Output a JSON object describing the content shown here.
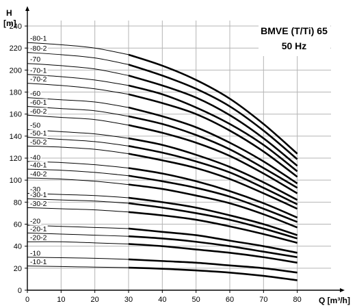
{
  "chart_data": {
    "type": "line",
    "title": "BMVE (T/Ti) 65",
    "subtitle": "50 Hz",
    "ylabel": "H",
    "yunit": "[m]",
    "xlabel": "Q [m³/h]",
    "xlim": [
      0,
      90
    ],
    "ylim": [
      0,
      245
    ],
    "xticks": [
      0,
      10,
      20,
      30,
      40,
      50,
      60,
      70,
      80
    ],
    "yticks": [
      0,
      20,
      40,
      60,
      80,
      100,
      120,
      140,
      160,
      180,
      200,
      220,
      240
    ],
    "grid": true,
    "bold_range": [
      30,
      80
    ],
    "x": [
      0,
      10,
      20,
      30,
      40,
      50,
      60,
      70,
      80
    ],
    "series": [
      {
        "name": "-80-1",
        "values": [
          225,
          223,
          220,
          214,
          204,
          191,
          174,
          151,
          124
        ]
      },
      {
        "name": "-80-2",
        "values": [
          216,
          214,
          211,
          205,
          195,
          183,
          167,
          145,
          119
        ]
      },
      {
        "name": "-70",
        "values": [
          206,
          204,
          201,
          195,
          186,
          175,
          159,
          138,
          113
        ]
      },
      {
        "name": "-70-1",
        "values": [
          196,
          194,
          191,
          186,
          178,
          166,
          151,
          132,
          108
        ]
      },
      {
        "name": "-70-2",
        "values": [
          188,
          186,
          183,
          178,
          170,
          160,
          145,
          126,
          103
        ]
      },
      {
        "name": "-60",
        "values": [
          175,
          173,
          171,
          166,
          158,
          148,
          134,
          117,
          97
        ]
      },
      {
        "name": "-60-1",
        "values": [
          167,
          165,
          163,
          158,
          151,
          141,
          128,
          111,
          93
        ]
      },
      {
        "name": "-60-2",
        "values": [
          159,
          157,
          155,
          150,
          143,
          134,
          122,
          106,
          88
        ]
      },
      {
        "name": "-50",
        "values": [
          146,
          144,
          142,
          138,
          132,
          123,
          112,
          98,
          82
        ]
      },
      {
        "name": "-50-1",
        "values": [
          139,
          137,
          135,
          131,
          125,
          117,
          107,
          93,
          78
        ]
      },
      {
        "name": "-50-2",
        "values": [
          131,
          130,
          128,
          124,
          118,
          111,
          101,
          88,
          74
        ]
      },
      {
        "name": "-40",
        "values": [
          117,
          116,
          114,
          111,
          106,
          99,
          90,
          79,
          66
        ]
      },
      {
        "name": "-40-1",
        "values": [
          110,
          109,
          107,
          104,
          99,
          93,
          85,
          74,
          62
        ]
      },
      {
        "name": "-40-2",
        "values": [
          102,
          101,
          99,
          96,
          92,
          86,
          79,
          69,
          57
        ]
      },
      {
        "name": "-30",
        "values": [
          88,
          87,
          86,
          84,
          80,
          75,
          68,
          60,
          50
        ]
      },
      {
        "name": "-30-1",
        "values": [
          83,
          82,
          81,
          79,
          75,
          70,
          64,
          56,
          47
        ]
      },
      {
        "name": "-30-2",
        "values": [
          75,
          74,
          73,
          71,
          68,
          64,
          58,
          51,
          43
        ]
      },
      {
        "name": "-20",
        "values": [
          59,
          58,
          57,
          56,
          53,
          50,
          45,
          40,
          34
        ]
      },
      {
        "name": "-20-1",
        "values": [
          52,
          51,
          50,
          49,
          47,
          44,
          40,
          35,
          30
        ]
      },
      {
        "name": "-20-2",
        "values": [
          44,
          44,
          43,
          42,
          40,
          37,
          34,
          30,
          25
        ]
      },
      {
        "name": "-10",
        "values": [
          30,
          29.5,
          29,
          28,
          26.5,
          25,
          22.5,
          20,
          16
        ]
      },
      {
        "name": "-10-1",
        "values": [
          22,
          21.5,
          21,
          20.5,
          19.5,
          18,
          16,
          13,
          9
        ]
      }
    ]
  }
}
